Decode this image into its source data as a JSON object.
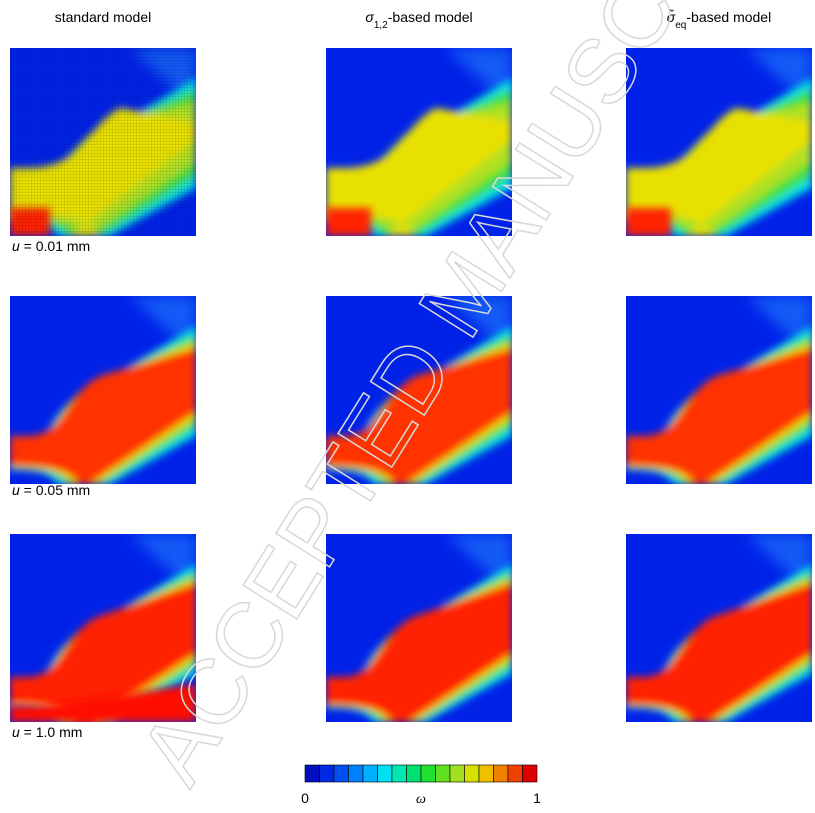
{
  "columns": [
    {
      "text": "standard model"
    },
    {
      "symbol": "σ",
      "subscript": "1,2",
      "rest": "-based model"
    },
    {
      "symbol": "σ̃",
      "subscript": "eq",
      "rest": "-based model"
    }
  ],
  "rows": [
    {
      "symbol": "u",
      "rest": " = 0.01 mm"
    },
    {
      "symbol": "u",
      "rest": " = 0.05 mm"
    },
    {
      "symbol": "u",
      "rest": " = 1.0 mm"
    }
  ],
  "colorbar": {
    "min_label": "0",
    "symbol": "ω",
    "max_label": "1"
  },
  "watermark": "ACCEPTED MANUSCRIPT"
}
